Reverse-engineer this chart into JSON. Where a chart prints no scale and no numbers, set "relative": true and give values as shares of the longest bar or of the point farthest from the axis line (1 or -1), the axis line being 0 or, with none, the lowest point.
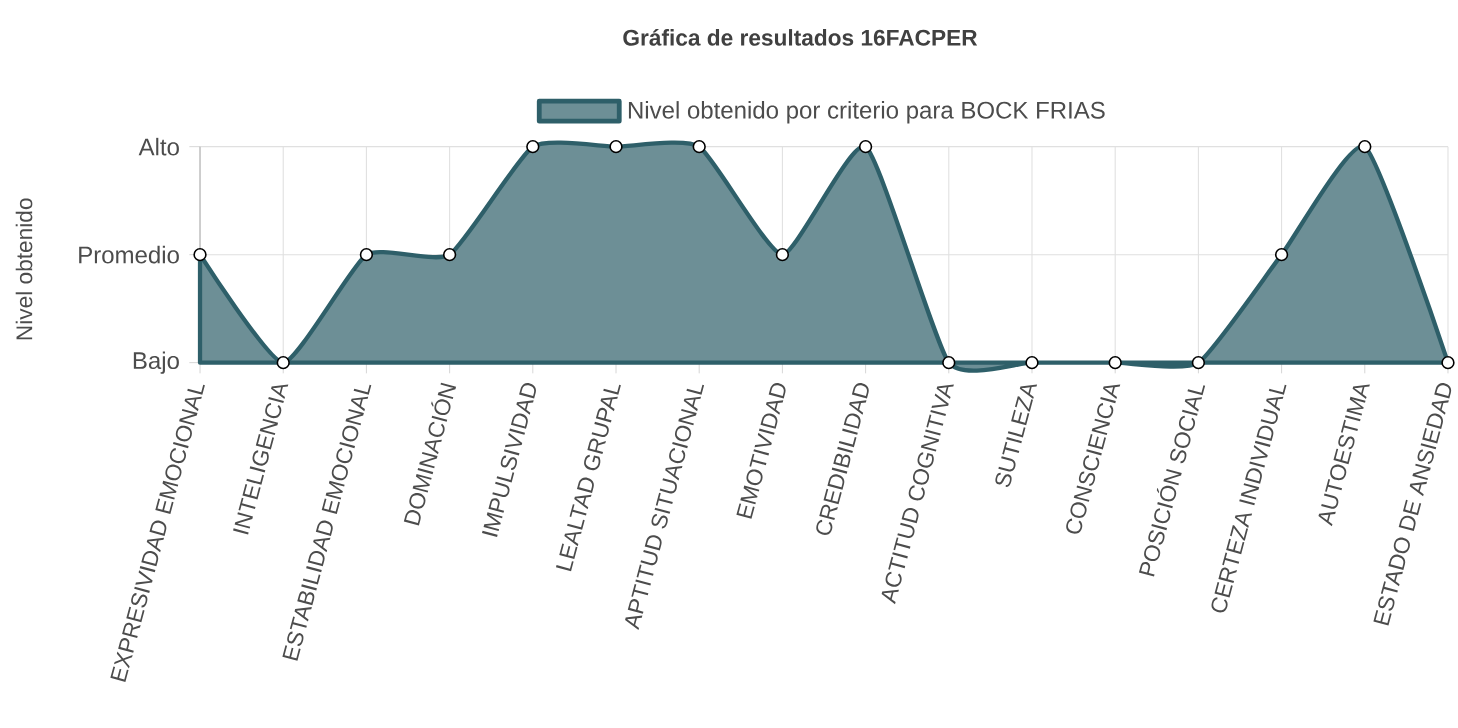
{
  "chart_data": {
    "type": "area",
    "title": "Gráfica de resultados 16FACPER",
    "ylabel": "Nivel obtenido",
    "categories": [
      "EXPRESIVIDAD EMOCIONAL",
      "INTELIGENCIA",
      "ESTABILIDAD EMOCIONAL",
      "DOMINACIÓN",
      "IMPULSIVIDAD",
      "LEALTAD GRUPAL",
      "APTITUD SITUACIONAL",
      "EMOTIVIDAD",
      "CREDIBILIDAD",
      "ACTITUD COGNITIVA",
      "SUTILEZA",
      "CONSCIENCIA",
      "POSICIÓN SOCIAL",
      "CERTEZA INDIVIDUAL",
      "AUTOESTIMA",
      "ESTADO DE ANSIEDAD"
    ],
    "series": [
      {
        "name": "Nivel obtenido por criterio para BOCK FRIAS",
        "color": "#2e5f69",
        "values": [
          0.5,
          0,
          0.5,
          0.5,
          1,
          1,
          1,
          0.5,
          1,
          0,
          0,
          0,
          0,
          0.5,
          1,
          0
        ]
      }
    ],
    "relative": true,
    "annotations": [
      "Bajo",
      "Promedio",
      "Alto"
    ],
    "grid": true,
    "legend": "top",
    "marker": "circle"
  }
}
